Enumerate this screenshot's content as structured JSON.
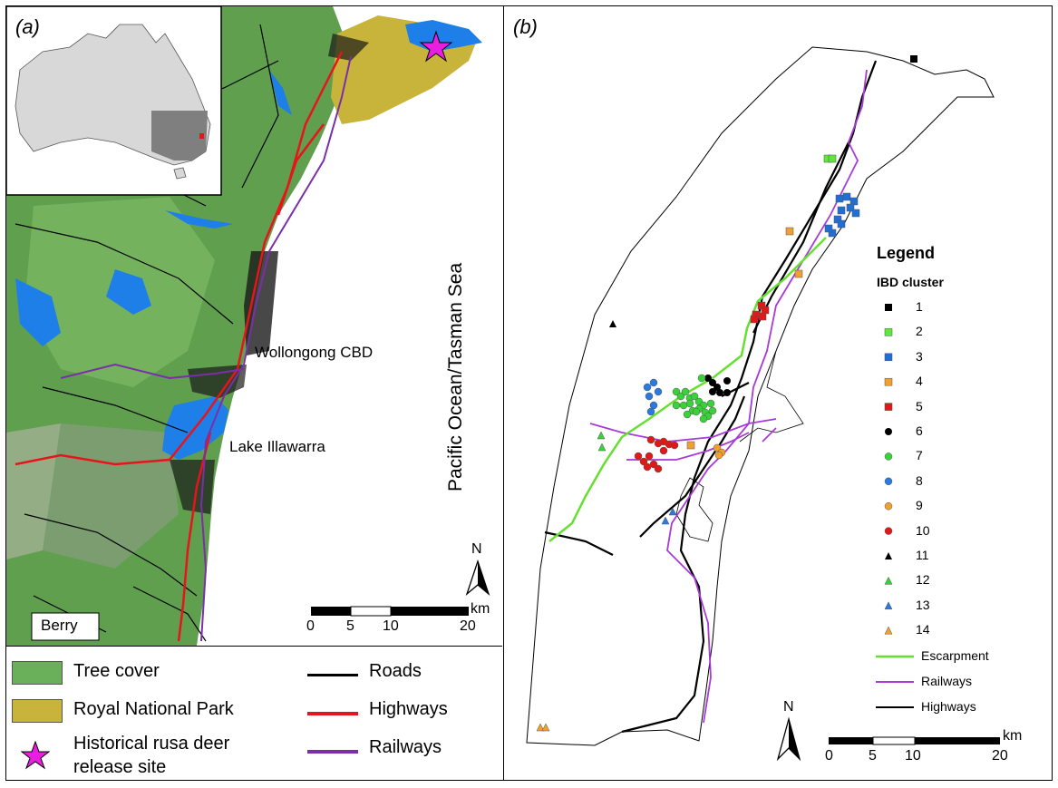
{
  "panel_a": {
    "label": "(a)",
    "places": {
      "wollongong": "Wollongong CBD",
      "lake": "Lake Illawarra",
      "berry": "Berry",
      "sea": "Pacific Ocean/Tasman Sea"
    },
    "north": "N",
    "scale": {
      "ticks": [
        "0",
        "5",
        "10",
        "20"
      ],
      "unit": "km"
    },
    "legend": [
      {
        "label": "Tree cover",
        "kind": "fill",
        "color": "#6aaf5a"
      },
      {
        "label": "Royal National Park",
        "kind": "fill",
        "color": "#c8b43a"
      },
      {
        "label": "Historical rusa deer",
        "label2": "release site",
        "kind": "star",
        "color": "#e81ee0"
      },
      {
        "label": "Roads",
        "kind": "line",
        "color": "#000000"
      },
      {
        "label": "Highways",
        "kind": "line",
        "color": "#e8141c"
      },
      {
        "label": "Railways",
        "kind": "line",
        "color": "#7a2fa8"
      }
    ]
  },
  "panel_b": {
    "label": "(b)",
    "legend_title": "Legend",
    "cluster_title": "IBD cluster",
    "clusters": [
      {
        "id": "1",
        "shape": "square",
        "color": "#000000"
      },
      {
        "id": "2",
        "shape": "square",
        "color": "#5ee83a"
      },
      {
        "id": "3",
        "shape": "square",
        "color": "#1f6fd6"
      },
      {
        "id": "4",
        "shape": "square",
        "color": "#f0a030"
      },
      {
        "id": "5",
        "shape": "square",
        "color": "#e01818"
      },
      {
        "id": "6",
        "shape": "circle",
        "color": "#000000"
      },
      {
        "id": "7",
        "shape": "circle",
        "color": "#3ad23a"
      },
      {
        "id": "8",
        "shape": "circle",
        "color": "#2a7ae0"
      },
      {
        "id": "9",
        "shape": "circle",
        "color": "#f0a030"
      },
      {
        "id": "10",
        "shape": "circle",
        "color": "#e01818"
      },
      {
        "id": "11",
        "shape": "triangle",
        "color": "#000000"
      },
      {
        "id": "12",
        "shape": "triangle",
        "color": "#3ad23a"
      },
      {
        "id": "13",
        "shape": "triangle",
        "color": "#2a7ae0"
      },
      {
        "id": "14",
        "shape": "triangle",
        "color": "#f0a030"
      }
    ],
    "lines": [
      {
        "label": "Escarpment",
        "color": "#66e030"
      },
      {
        "label": "Railways",
        "color": "#a83ad8"
      },
      {
        "label": "Highways",
        "color": "#000000"
      }
    ],
    "north": "N",
    "scale": {
      "ticks": [
        "0",
        "5",
        "10",
        "20"
      ],
      "unit": "km"
    }
  }
}
